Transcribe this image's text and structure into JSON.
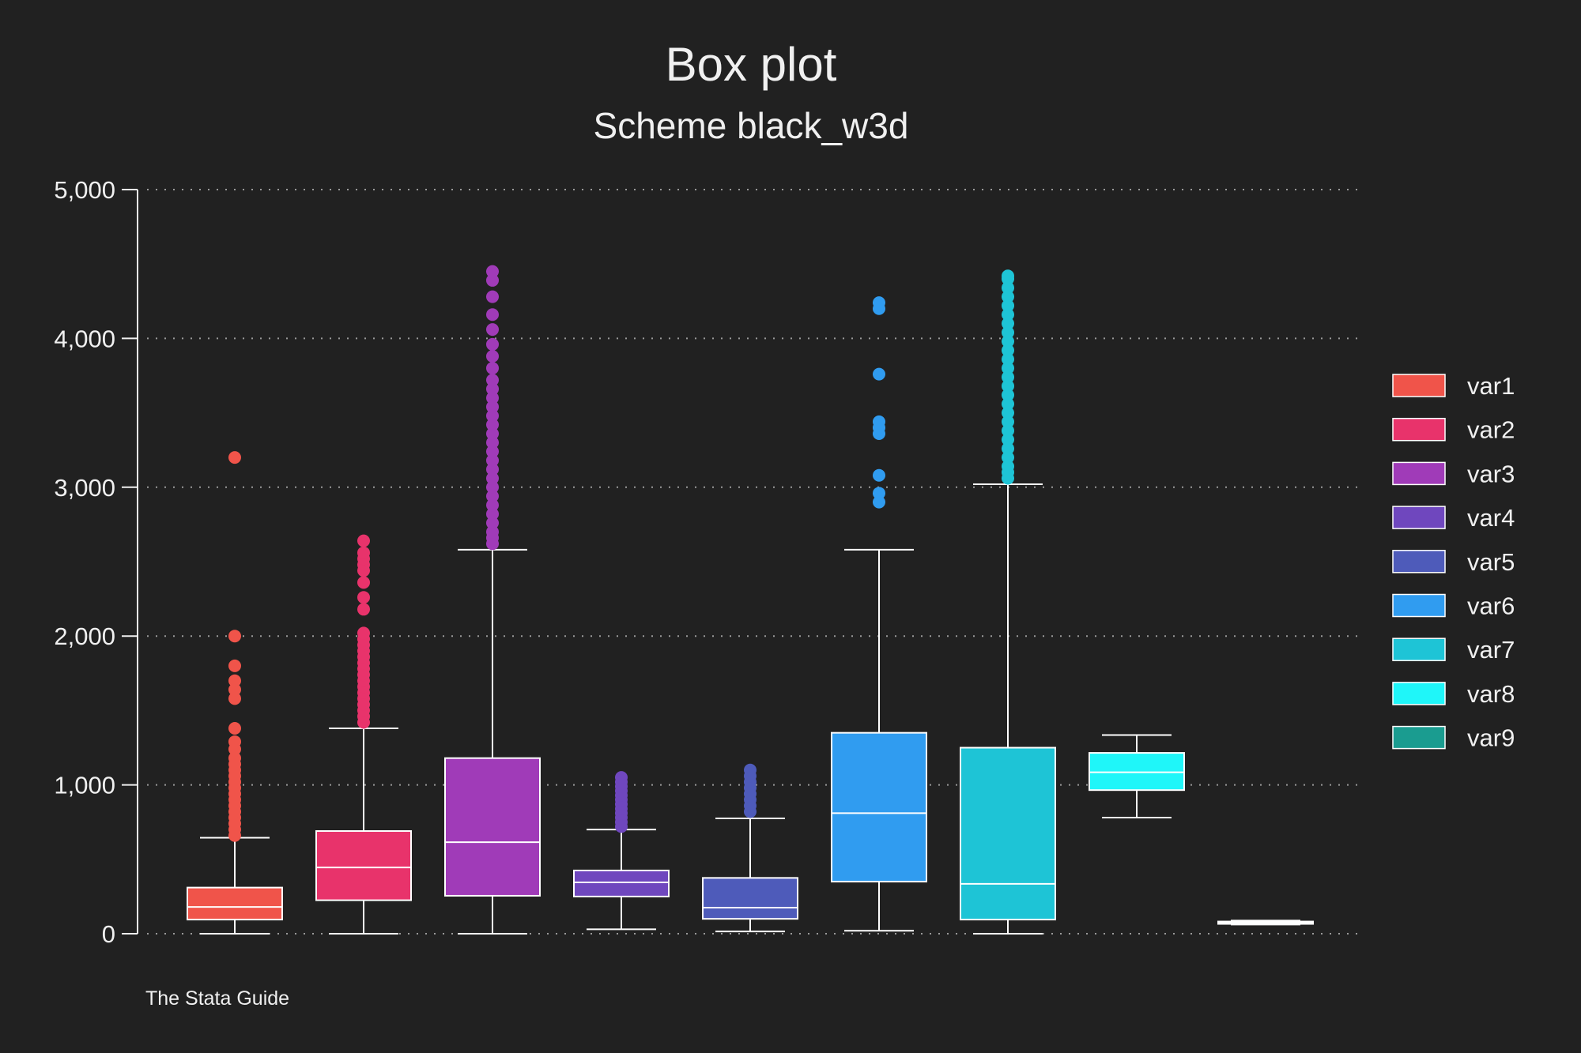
{
  "chart_data": {
    "type": "box",
    "title": "Box plot",
    "subtitle": "Scheme black_w3d",
    "note": "The Stata Guide",
    "xlabel": "",
    "ylabel": "",
    "ylim": [
      0,
      5000
    ],
    "y_ticks": [
      0,
      1000,
      2000,
      3000,
      4000,
      5000
    ],
    "y_tick_labels": [
      "0",
      "1,000",
      "2,000",
      "3,000",
      "4,000",
      "5,000"
    ],
    "grid": true,
    "legend_position": "right",
    "series": [
      {
        "name": "var1",
        "color": "#f0544a",
        "min": 0,
        "q1": 95,
        "median": 180,
        "q3": 310,
        "max": 645,
        "outliers": [
          660,
          700,
          740,
          780,
          820,
          860,
          900,
          940,
          980,
          1020,
          1060,
          1100,
          1140,
          1180,
          1240,
          1290,
          1380,
          1580,
          1640,
          1700,
          1800,
          2000,
          3200
        ]
      },
      {
        "name": "var2",
        "color": "#e8336b",
        "min": 0,
        "q1": 225,
        "median": 445,
        "q3": 690,
        "max": 1380,
        "outliers": [
          1420,
          1460,
          1500,
          1540,
          1580,
          1620,
          1660,
          1700,
          1740,
          1780,
          1820,
          1860,
          1900,
          1940,
          1980,
          2020,
          2180,
          2260,
          2360,
          2440,
          2480,
          2520,
          2560,
          2640
        ]
      },
      {
        "name": "var3",
        "color": "#a03bb8",
        "min": 0,
        "q1": 255,
        "median": 615,
        "q3": 1180,
        "max": 2580,
        "outliers": [
          2620,
          2660,
          2700,
          2760,
          2820,
          2880,
          2940,
          3000,
          3060,
          3120,
          3180,
          3240,
          3300,
          3360,
          3420,
          3480,
          3540,
          3600,
          3660,
          3720,
          3800,
          3880,
          3960,
          4060,
          4160,
          4280,
          4390,
          4450
        ]
      },
      {
        "name": "var4",
        "color": "#6f47be",
        "min": 30,
        "q1": 250,
        "median": 345,
        "q3": 425,
        "max": 700,
        "outliers": [
          720,
          750,
          780,
          810,
          840,
          870,
          900,
          930,
          960,
          990,
          1020,
          1050
        ]
      },
      {
        "name": "var5",
        "color": "#4e5bba",
        "min": 15,
        "q1": 100,
        "median": 175,
        "q3": 375,
        "max": 775,
        "outliers": [
          820,
          860,
          900,
          940,
          980,
          1020,
          1060,
          1100
        ]
      },
      {
        "name": "var6",
        "color": "#309cf0",
        "min": 20,
        "q1": 350,
        "median": 810,
        "q3": 1350,
        "max": 2580,
        "outliers": [
          2900,
          2960,
          3080,
          3360,
          3400,
          3440,
          3760,
          4200,
          4240
        ]
      },
      {
        "name": "var7",
        "color": "#1ec4d6",
        "min": 0,
        "q1": 95,
        "median": 335,
        "q3": 1250,
        "max": 3020,
        "outliers": [
          3060,
          3100,
          3140,
          3200,
          3260,
          3320,
          3380,
          3440,
          3500,
          3560,
          3620,
          3680,
          3740,
          3800,
          3860,
          3920,
          3980,
          4040,
          4100,
          4160,
          4220,
          4280,
          4340,
          4400,
          4420
        ]
      },
      {
        "name": "var8",
        "color": "#1ff6f9",
        "min": 780,
        "q1": 965,
        "median": 1085,
        "q3": 1215,
        "max": 1335,
        "outliers": []
      },
      {
        "name": "var9",
        "color": "#1a9c90",
        "min": 62,
        "q1": 68,
        "median": 75,
        "q3": 82,
        "max": 88,
        "outliers": []
      }
    ]
  }
}
